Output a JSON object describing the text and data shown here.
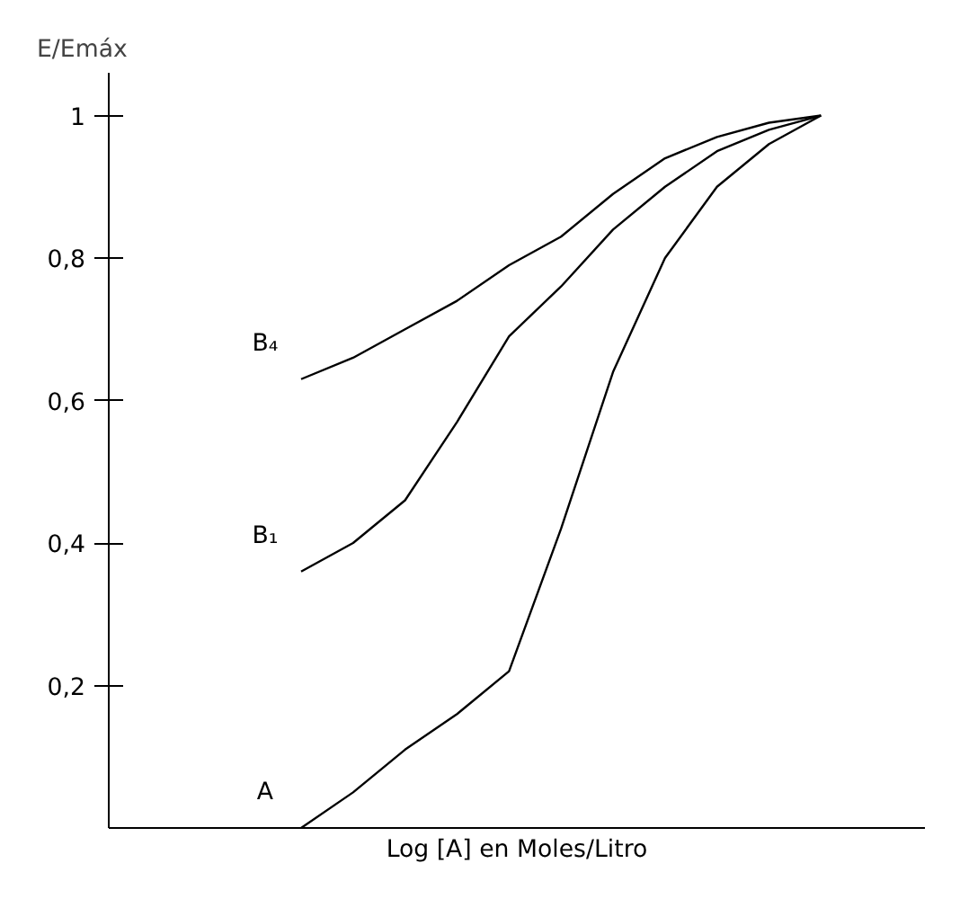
{
  "chart_data": {
    "type": "line",
    "xlabel": "Log [A] en Moles/Litro",
    "ylabel": "E/Emáx",
    "categories": [
      null,
      null,
      null,
      null,
      null,
      null,
      null,
      null,
      null,
      null,
      null
    ],
    "series": [
      {
        "name": "B₄",
        "color": "#000000",
        "values": [
          0.63,
          0.66,
          0.7,
          0.74,
          0.79,
          0.83,
          0.89,
          0.94,
          0.97,
          0.99,
          1.0
        ]
      },
      {
        "name": "B₁",
        "color": "#000000",
        "values": [
          0.36,
          0.4,
          0.46,
          0.57,
          0.69,
          0.76,
          0.84,
          0.9,
          0.95,
          0.98,
          1.0
        ]
      },
      {
        "name": "A",
        "color": "#000000",
        "values": [
          0.0,
          0.05,
          0.11,
          0.16,
          0.22,
          0.42,
          0.64,
          0.8,
          0.9,
          0.96,
          1.0
        ]
      }
    ],
    "ylim": [
      0,
      1.06
    ],
    "yticks": [
      {
        "value": 0.2,
        "label": "0,2"
      },
      {
        "value": 0.4,
        "label": "0,4"
      },
      {
        "value": 0.6,
        "label": "0,6"
      },
      {
        "value": 0.8,
        "label": "0,8"
      },
      {
        "value": 1,
        "label": "1"
      }
    ],
    "grid": false,
    "marker": "none",
    "line_style": "solid"
  }
}
